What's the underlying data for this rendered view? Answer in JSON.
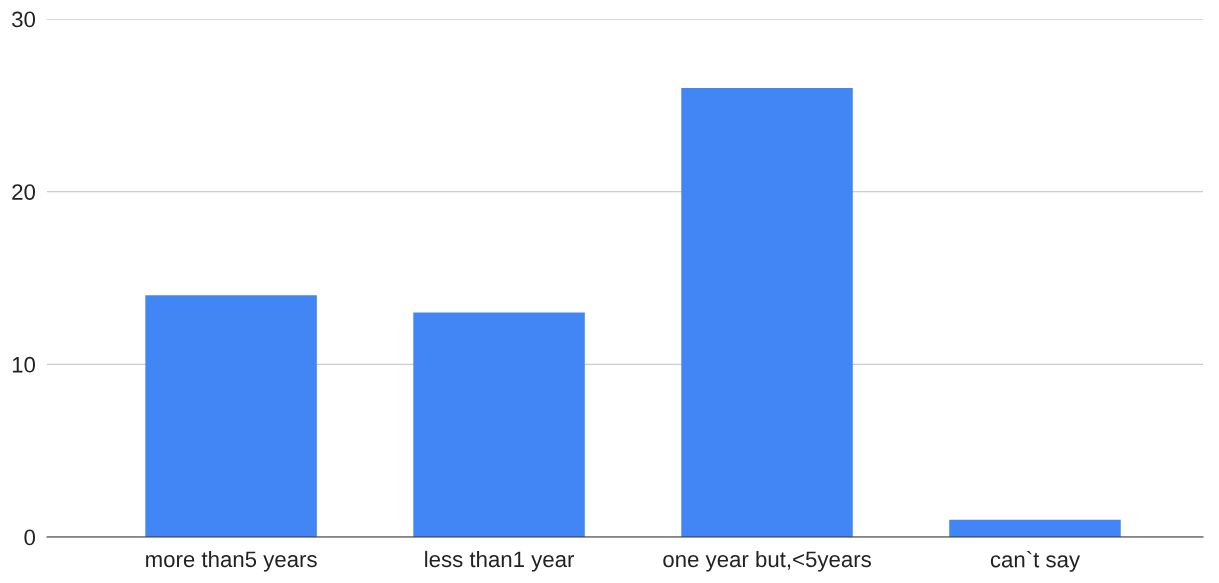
{
  "chart_data": {
    "type": "bar",
    "categories": [
      "more than5 years",
      "less than1 year",
      "one year but,<5years",
      "can`t say"
    ],
    "values": [
      14,
      13,
      26,
      1
    ],
    "color": "#4285f4",
    "ylim": [
      0,
      30
    ],
    "yticks": [
      0,
      10,
      20,
      30
    ],
    "grid": "y",
    "legend": false
  }
}
